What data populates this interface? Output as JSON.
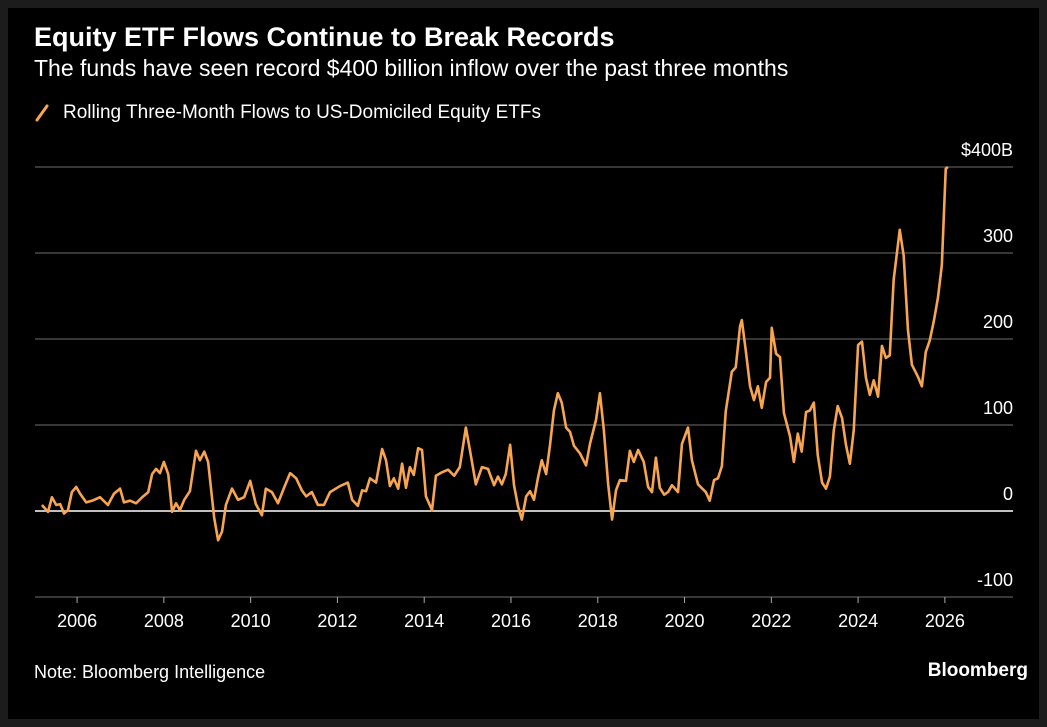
{
  "chart_data": {
    "type": "line",
    "title": "Equity ETF Flows Continue to Break Records",
    "subtitle": "The funds have seen record $400 billion inflow over the past three months",
    "note": "Note: Bloomberg Intelligence",
    "source": "Bloomberg",
    "legend": "top-left",
    "grid": true,
    "xlim": [
      2005.03,
      2027.57
    ],
    "xticks": [
      2006,
      2008,
      2010,
      2012,
      2014,
      2016,
      2018,
      2020,
      2022,
      2024,
      2026
    ],
    "ylim": [
      -100,
      400
    ],
    "yticks": [
      {
        "value": 400,
        "label": "$400B"
      },
      300,
      200,
      100,
      0,
      -100
    ],
    "x": [
      2005.19,
      2005.33,
      2005.42,
      2005.52,
      2005.61,
      2005.7,
      2005.79,
      2005.88,
      2005.98,
      2006.07,
      2006.21,
      2006.35,
      2006.53,
      2006.71,
      2006.85,
      2006.99,
      2007.08,
      2007.22,
      2007.36,
      2007.5,
      2007.64,
      2007.73,
      2007.82,
      2007.91,
      2008.0,
      2008.1,
      2008.19,
      2008.28,
      2008.37,
      2008.47,
      2008.6,
      2008.74,
      2008.83,
      2008.93,
      2009.02,
      2009.16,
      2009.25,
      2009.34,
      2009.43,
      2009.57,
      2009.71,
      2009.85,
      2009.99,
      2010.12,
      2010.26,
      2010.35,
      2010.49,
      2010.63,
      2010.77,
      2010.91,
      2011.05,
      2011.18,
      2011.28,
      2011.41,
      2011.55,
      2011.69,
      2011.83,
      2012.06,
      2012.24,
      2012.34,
      2012.47,
      2012.57,
      2012.66,
      2012.75,
      2012.89,
      2013.03,
      2013.12,
      2013.21,
      2013.3,
      2013.4,
      2013.49,
      2013.58,
      2013.67,
      2013.76,
      2013.86,
      2013.95,
      2014.04,
      2014.18,
      2014.27,
      2014.41,
      2014.55,
      2014.69,
      2014.82,
      2014.96,
      2015.06,
      2015.19,
      2015.33,
      2015.47,
      2015.61,
      2015.7,
      2015.79,
      2015.88,
      2015.98,
      2016.07,
      2016.16,
      2016.25,
      2016.35,
      2016.44,
      2016.53,
      2016.62,
      2016.71,
      2016.81,
      2016.9,
      2016.99,
      2017.08,
      2017.17,
      2017.27,
      2017.36,
      2017.45,
      2017.59,
      2017.73,
      2017.82,
      2017.96,
      2018.05,
      2018.14,
      2018.24,
      2018.33,
      2018.42,
      2018.51,
      2018.65,
      2018.74,
      2018.83,
      2018.93,
      2019.06,
      2019.16,
      2019.25,
      2019.34,
      2019.43,
      2019.53,
      2019.62,
      2019.71,
      2019.85,
      2019.94,
      2020.08,
      2020.17,
      2020.31,
      2020.49,
      2020.58,
      2020.68,
      2020.77,
      2020.86,
      2020.95,
      2021.09,
      2021.18,
      2021.28,
      2021.32,
      2021.41,
      2021.51,
      2021.6,
      2021.69,
      2021.78,
      2021.88,
      2021.97,
      2022.01,
      2022.11,
      2022.2,
      2022.29,
      2022.43,
      2022.52,
      2022.61,
      2022.7,
      2022.8,
      2022.89,
      2022.98,
      2023.07,
      2023.17,
      2023.26,
      2023.35,
      2023.44,
      2023.53,
      2023.63,
      2023.72,
      2023.81,
      2023.9,
      2024.0,
      2024.09,
      2024.18,
      2024.27,
      2024.36,
      2024.46,
      2024.55,
      2024.64,
      2024.73,
      2024.82,
      2024.96,
      2025.05,
      2025.15,
      2025.24,
      2025.38,
      2025.47,
      2025.56,
      2025.65,
      2025.75,
      2025.84,
      2025.93,
      2026.02,
      2026.07
    ],
    "series": [
      {
        "name": "Rolling Three-Month Flows to US-Domiciled Equity ETFs",
        "color": "#f7a550",
        "values": [
          7,
          -1,
          16,
          7,
          8,
          -3,
          1,
          22,
          28,
          20,
          10,
          12,
          16,
          7,
          20,
          26,
          10,
          12,
          9,
          16,
          22,
          43,
          49,
          44,
          57,
          43,
          -1,
          9,
          1,
          13,
          23,
          70,
          59,
          69,
          57,
          -8,
          -34,
          -24,
          7,
          26,
          13,
          16,
          35,
          8,
          -5,
          26,
          22,
          9,
          27,
          44,
          38,
          24,
          17,
          22,
          7,
          7,
          22,
          29,
          33,
          13,
          6,
          24,
          23,
          38,
          33,
          72,
          59,
          29,
          38,
          26,
          55,
          27,
          51,
          42,
          73,
          71,
          17,
          1,
          41,
          45,
          48,
          41,
          51,
          97,
          69,
          31,
          51,
          49,
          30,
          40,
          31,
          43,
          77,
          30,
          6,
          -10,
          17,
          23,
          13,
          38,
          59,
          43,
          77,
          117,
          137,
          126,
          97,
          92,
          76,
          67,
          53,
          78,
          106,
          137,
          94,
          31,
          -10,
          24,
          36,
          35,
          70,
          57,
          71,
          57,
          28,
          22,
          62,
          27,
          19,
          22,
          30,
          22,
          78,
          97,
          59,
          31,
          22,
          12,
          36,
          38,
          52,
          116,
          162,
          167,
          215,
          222,
          187,
          145,
          129,
          145,
          120,
          150,
          155,
          213,
          183,
          179,
          114,
          87,
          57,
          90,
          69,
          115,
          117,
          126,
          65,
          33,
          26,
          40,
          94,
          122,
          108,
          77,
          55,
          94,
          193,
          197,
          155,
          135,
          152,
          133,
          192,
          178,
          181,
          269,
          327,
          297,
          210,
          170,
          156,
          145,
          185,
          198,
          222,
          248,
          286,
          398,
          400
        ]
      }
    ]
  }
}
